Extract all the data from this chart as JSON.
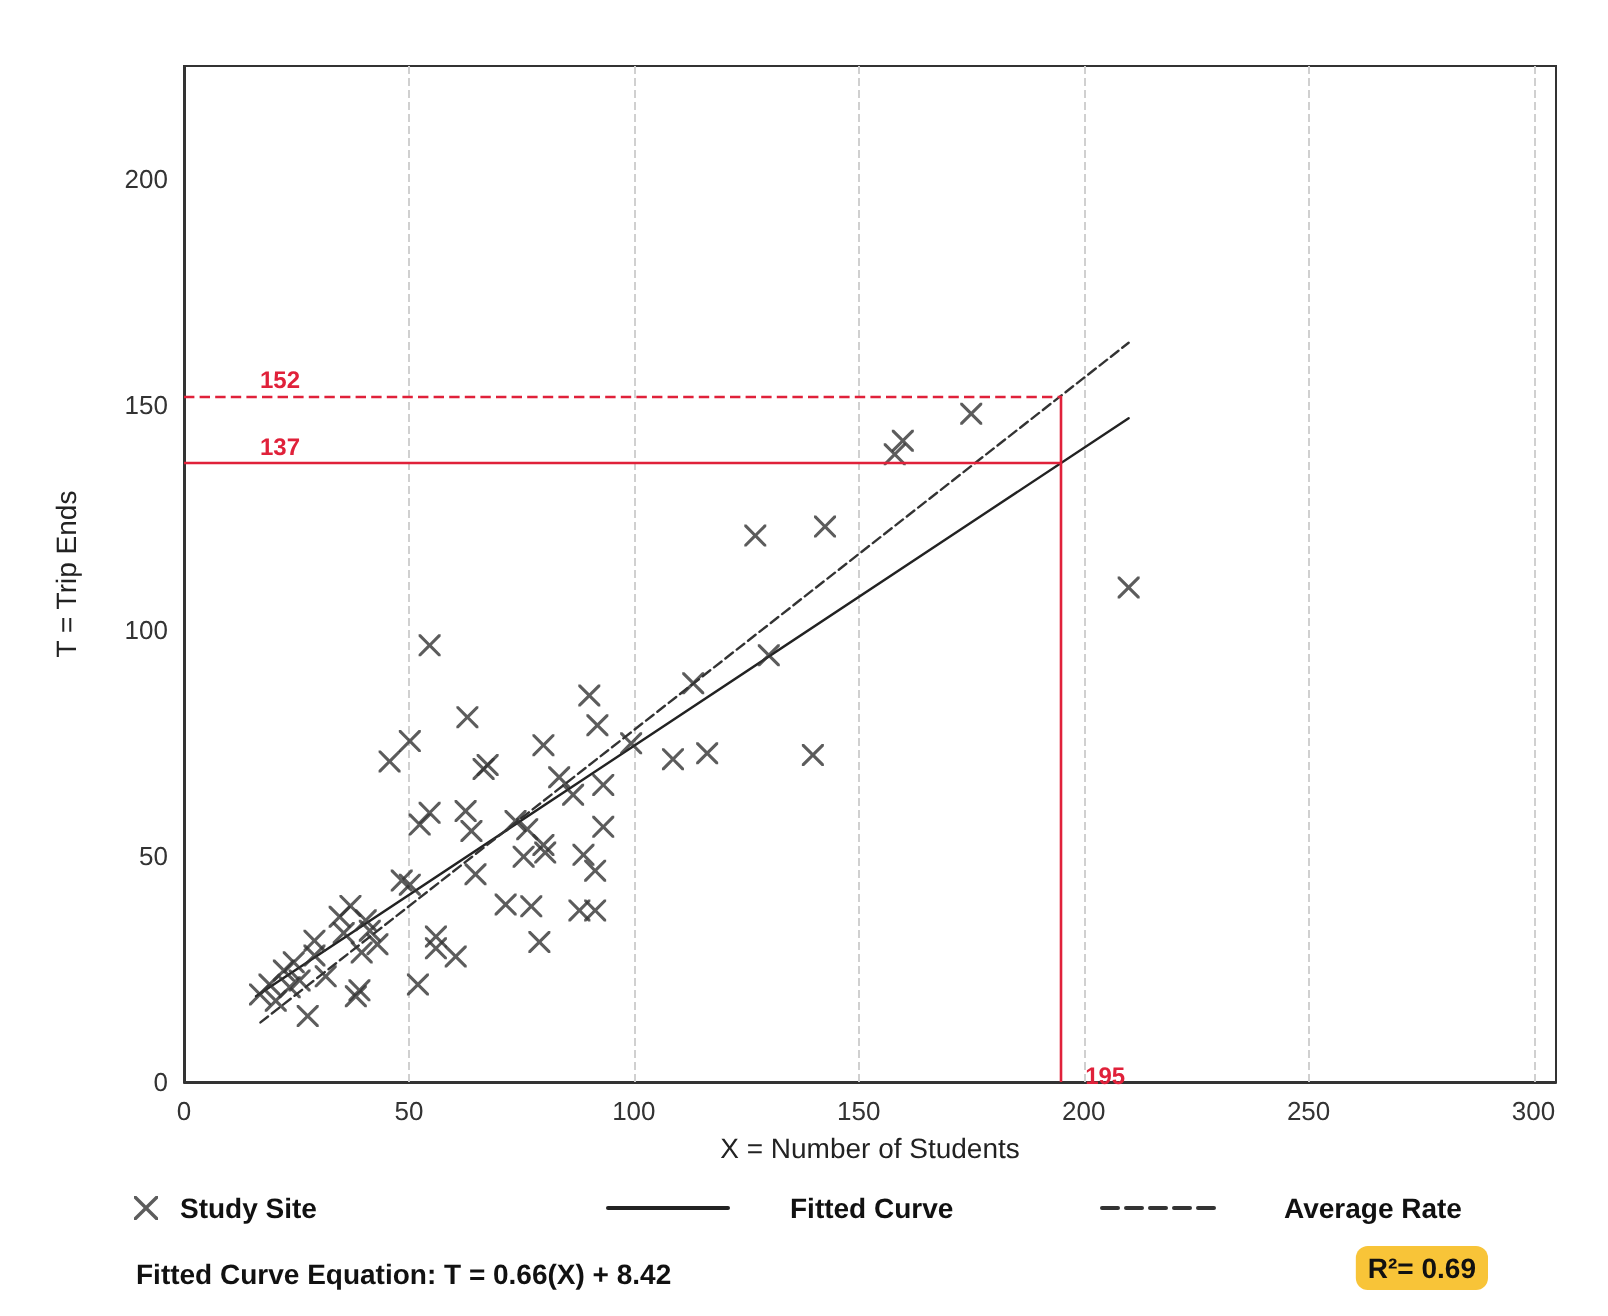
{
  "chart_data": {
    "type": "scatter",
    "xlabel": "X = Number of Students",
    "ylabel": "T = Trip Ends",
    "xlim": [
      0,
      305
    ],
    "ylim": [
      0,
      225
    ],
    "xticks": [
      0,
      50,
      100,
      150,
      200,
      250,
      300
    ],
    "yticks": [
      0,
      50,
      100,
      150,
      200
    ],
    "grid": "x",
    "legend": "bottom",
    "marker": "cross",
    "series": [
      {
        "name": "Study Site",
        "color": "#333333",
        "x": [
          16.9,
          19,
          20.4,
          22.2,
          23.5,
          24.4,
          25.7,
          27.5,
          29,
          29,
          31.5,
          34.6,
          35.5,
          37,
          38.2,
          39,
          39.5,
          40.4,
          41.3,
          43,
          45.7,
          48.4,
          50.2,
          50.2,
          52,
          52.4,
          54.6,
          54.6,
          56,
          56,
          60.4,
          62.6,
          63,
          63.9,
          64.8,
          66.6,
          67.5,
          71.5,
          73.7,
          75.5,
          76.3,
          77.2,
          79,
          79.9,
          79.9,
          80.3,
          83.4,
          86.5,
          87.9,
          88.8,
          90.1,
          91.4,
          91.9,
          91.4,
          93.2,
          93.2,
          99.4,
          108.7,
          113.2,
          116.3,
          127,
          130,
          139.8,
          142.5,
          158,
          159.8,
          175,
          210
        ],
        "values": [
          19.4,
          21.6,
          18,
          24.7,
          21,
          26.5,
          22.5,
          14.6,
          31.3,
          28,
          23.4,
          36.6,
          33,
          39,
          19,
          20.3,
          28.7,
          35.8,
          33.5,
          30.5,
          71,
          44.6,
          75.5,
          43.7,
          21.6,
          57,
          96.7,
          59.6,
          32.2,
          29.6,
          27.8,
          60,
          80.8,
          55.6,
          46,
          69.3,
          70.2,
          39.3,
          57.8,
          49.9,
          56,
          38.9,
          31,
          74.6,
          52.5,
          50.8,
          67.5,
          63.6,
          38,
          50.3,
          85.6,
          38,
          79,
          46.8,
          65.8,
          56.5,
          75,
          71.5,
          88.3,
          72.8,
          121,
          94.5,
          72.4,
          123,
          139,
          142,
          148,
          109.5
        ]
      },
      {
        "name": "Fitted Curve",
        "type": "line",
        "marker": "none",
        "line_style": "solid",
        "color": "#222222",
        "x": [
          16,
          210
        ],
        "values": [
          19,
          147
        ]
      },
      {
        "name": "Average Rate",
        "type": "line",
        "marker": "none",
        "line_style": "dashed",
        "color": "#333333",
        "x": [
          17,
          210
        ],
        "values": [
          13.2,
          163.7
        ]
      }
    ],
    "ref_lines": [
      {
        "axis": "y",
        "value": 152,
        "label": "152",
        "color": "#e0213a",
        "line_style": "dashed"
      },
      {
        "axis": "y",
        "value": 137,
        "label": "137",
        "color": "#e0213a",
        "line_style": "solid"
      },
      {
        "axis": "x",
        "value": 195,
        "label": "195",
        "color": "#e0213a",
        "line_style": "solid"
      }
    ],
    "annotations": [
      "Fitted Curve Equation: T = 0.66(X) + 8.42",
      "R²= 0.69"
    ]
  }
}
